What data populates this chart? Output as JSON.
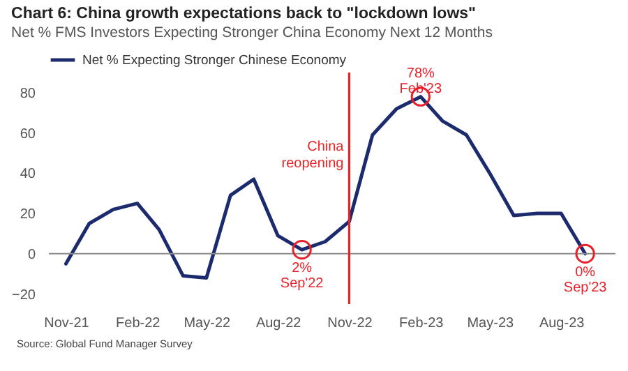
{
  "chart_data": {
    "type": "line",
    "title": "Chart 6: China growth expectations back to \"lockdown lows\"",
    "subtitle": "Net % FMS Investors Expecting Stronger China Economy Next 12 Months",
    "x": [
      "2021-11",
      "2021-12",
      "2022-01",
      "2022-02",
      "2022-03",
      "2022-04",
      "2022-05",
      "2022-06",
      "2022-07",
      "2022-08",
      "2022-09",
      "2022-10",
      "2022-11",
      "2022-12",
      "2023-01",
      "2023-02",
      "2023-03",
      "2023-04",
      "2023-05",
      "2023-06",
      "2023-07",
      "2023-08",
      "2023-09"
    ],
    "series": [
      {
        "name": "Net % Expecting Stronger Chinese Economy",
        "color": "#1c2a6e",
        "values": [
          -5,
          15,
          22,
          25,
          12,
          -11,
          -12,
          29,
          37,
          9,
          2,
          6,
          16,
          59,
          72,
          78,
          66,
          59,
          40,
          19,
          20,
          20,
          0
        ]
      }
    ],
    "xlim": [
      "2021-10-10",
      "2023-10-10"
    ],
    "xticks": [
      {
        "value": "2021-11",
        "label": "Nov-21"
      },
      {
        "value": "2022-02",
        "label": "Feb-22"
      },
      {
        "value": "2022-05",
        "label": "May-22"
      },
      {
        "value": "2022-08",
        "label": "Aug-22"
      },
      {
        "value": "2022-11",
        "label": "Nov-22"
      },
      {
        "value": "2023-02",
        "label": "Feb-23"
      },
      {
        "value": "2023-05",
        "label": "May-23"
      },
      {
        "value": "2023-08",
        "label": "Aug-23"
      }
    ],
    "ylim": [
      -25,
      90
    ],
    "yticks": [
      -20,
      0,
      20,
      40,
      60,
      80
    ],
    "ref_lines": [
      {
        "axis": "y",
        "value": 0,
        "color": "#8c8c8c"
      },
      {
        "axis": "x",
        "value": "2022-11",
        "label": "China\nreopening",
        "color": "#ee2222"
      }
    ],
    "annotations": [
      {
        "text": "78%\nFeb'23",
        "x": "2023-02",
        "y": 78
      },
      {
        "text": "2%\nSep'22",
        "x": "2022-09",
        "y": 2
      },
      {
        "text": "0%\nSep'23",
        "x": "2023-09",
        "y": 0
      },
      "Source: Global Fund Manager Survey"
    ],
    "legend": "top"
  }
}
